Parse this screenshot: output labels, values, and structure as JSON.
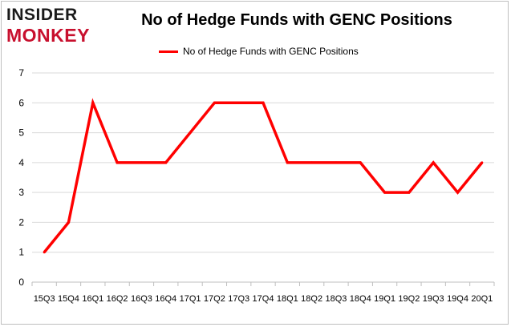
{
  "logo": {
    "line1": "INSIDER",
    "line2": "MONKEY"
  },
  "colors": {
    "series": "#ff0000",
    "grid": "#d9d9d9",
    "brand_red": "#c8102e"
  },
  "chart_data": {
    "type": "line",
    "title": "No of Hedge Funds with GENC Positions",
    "xlabel": "",
    "ylabel": "",
    "ylim": [
      0,
      7
    ],
    "yticks": [
      0,
      1,
      2,
      3,
      4,
      5,
      6,
      7
    ],
    "grid": true,
    "legend_position": "top",
    "categories": [
      "15Q3",
      "15Q4",
      "16Q1",
      "16Q2",
      "16Q3",
      "16Q4",
      "17Q1",
      "17Q2",
      "17Q3",
      "17Q4",
      "18Q1",
      "18Q2",
      "18Q3",
      "18Q4",
      "19Q1",
      "19Q2",
      "19Q3",
      "19Q4",
      "20Q1"
    ],
    "series": [
      {
        "name": "No of Hedge Funds with GENC Positions",
        "values": [
          1,
          2,
          6,
          4,
          4,
          4,
          5,
          6,
          6,
          6,
          4,
          4,
          4,
          4,
          3,
          3,
          4,
          3,
          4
        ]
      }
    ]
  }
}
